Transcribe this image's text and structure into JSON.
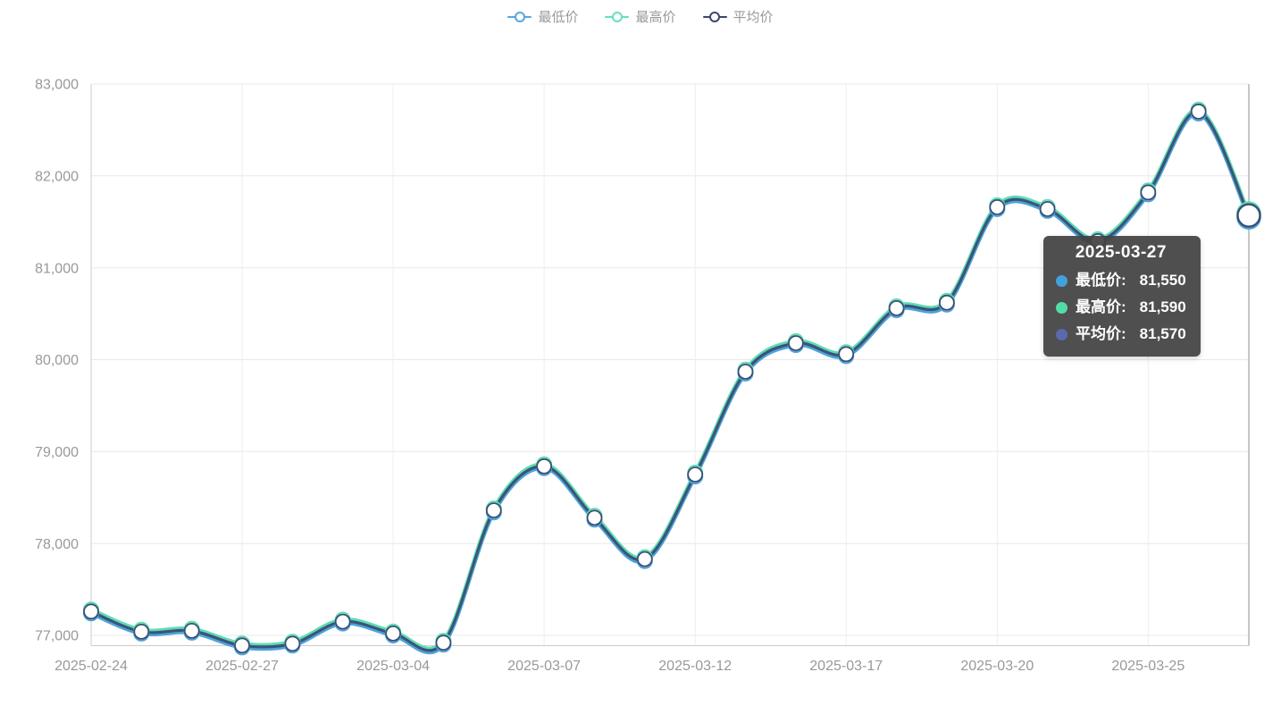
{
  "legend": {
    "items": [
      {
        "label": "最低价",
        "color": "#55A7DC"
      },
      {
        "label": "最高价",
        "color": "#66DFC0"
      },
      {
        "label": "平均价",
        "color": "#39476B"
      }
    ]
  },
  "chart_data": {
    "type": "line",
    "title": "",
    "xlabel": "",
    "ylabel": "",
    "grid": true,
    "legend_position": "top",
    "smooth": true,
    "x": [
      "2025-02-24",
      "2025-02-25",
      "2025-02-26",
      "2025-02-27",
      "2025-02-28",
      "2025-03-03",
      "2025-03-04",
      "2025-03-05",
      "2025-03-06",
      "2025-03-07",
      "2025-03-10",
      "2025-03-11",
      "2025-03-12",
      "2025-03-13",
      "2025-03-14",
      "2025-03-17",
      "2025-03-18",
      "2025-03-19",
      "2025-03-20",
      "2025-03-21",
      "2025-03-24",
      "2025-03-25",
      "2025-03-26",
      "2025-03-27"
    ],
    "x_tick_indices": [
      0,
      3,
      6,
      9,
      12,
      15,
      18,
      21
    ],
    "x_tick_labels": [
      "2025-02-24",
      "2025-02-27",
      "2025-03-04",
      "2025-03-07",
      "2025-03-12",
      "2025-03-17",
      "2025-03-20",
      "2025-03-25"
    ],
    "y_ticks": {
      "values": [
        77000,
        78000,
        79000,
        80000,
        81000,
        82000,
        83000
      ],
      "labels": [
        "77,000",
        "78,000",
        "79,000",
        "80,000",
        "81,000",
        "82,000",
        "83,000"
      ]
    },
    "ylim": [
      76880,
      83000
    ],
    "series": [
      {
        "name": "最低价",
        "color": "#4DA3DB",
        "line_width": 4.5,
        "values": [
          77240,
          77020,
          77030,
          76870,
          76890,
          77130,
          77000,
          76900,
          78340,
          78820,
          78260,
          77810,
          78730,
          79850,
          80160,
          80040,
          80540,
          80600,
          81640,
          81620,
          81270,
          81800,
          82680,
          81550
        ]
      },
      {
        "name": "最高价",
        "color": "#5EDCB5",
        "line_width": 4.5,
        "values": [
          77280,
          77060,
          77070,
          76910,
          76930,
          77170,
          77040,
          76940,
          78380,
          78860,
          78300,
          77850,
          78770,
          79890,
          80200,
          80080,
          80580,
          80640,
          81680,
          81660,
          81310,
          81840,
          82720,
          81590
        ]
      },
      {
        "name": "平均价",
        "color": "#394E73",
        "line_width": 3.2,
        "values": [
          77260,
          77040,
          77050,
          76890,
          76910,
          77150,
          77020,
          76920,
          78360,
          78840,
          78280,
          77830,
          78750,
          79870,
          80180,
          80060,
          80560,
          80620,
          81660,
          81640,
          81290,
          81820,
          82700,
          81570
        ]
      }
    ],
    "hover_index": 23
  },
  "tooltip": {
    "title": "2025-03-27",
    "items": [
      {
        "label": "最低价: ",
        "value": "81,550",
        "color": "#41A2DC"
      },
      {
        "label": "最高价: ",
        "value": "81,590",
        "color": "#53DCA8"
      },
      {
        "label": "平均价: ",
        "value": "81,570",
        "color": "#5A69AE"
      }
    ]
  }
}
